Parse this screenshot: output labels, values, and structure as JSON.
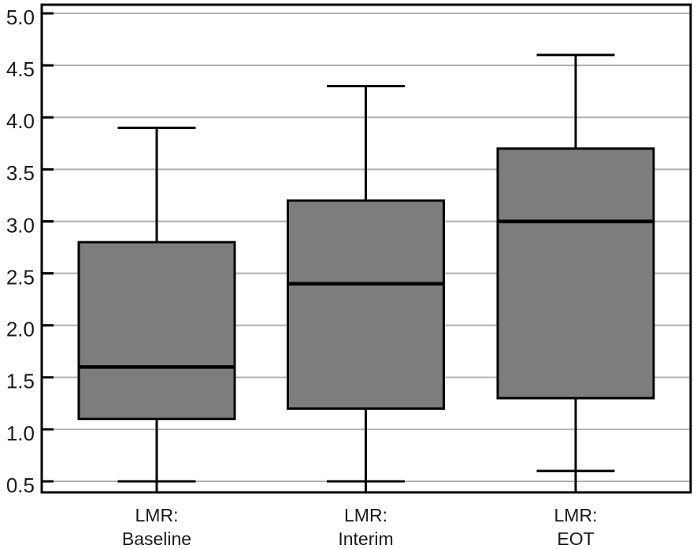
{
  "figure": {
    "background": "#ffffff",
    "title": ""
  },
  "chart_data": {
    "type": "boxplot",
    "title": "",
    "xlabel": "",
    "ylabel": "",
    "ylim": [
      0.5,
      5.0
    ],
    "ytick_interval": 0.5,
    "ytick_labels": [
      "5.0",
      "4.5",
      "4.0",
      "3.5",
      "3.0",
      "2.5",
      "2.0",
      "1.5",
      "1.0",
      "0.5"
    ],
    "grid": "horizontal",
    "legend": "none",
    "categories": [
      "LMR: Baseline",
      "LMR: Interim",
      "LMR: EOT"
    ],
    "category_label_lines": [
      [
        "LMR:",
        "Baseline"
      ],
      [
        "LMR:",
        "Interim"
      ],
      [
        "LMR:",
        "EOT"
      ]
    ],
    "series": [
      {
        "name": "LMR: Baseline",
        "whisker_low": 0.5,
        "q1": 1.1,
        "median": 1.6,
        "q3": 2.8,
        "whisker_high": 3.9
      },
      {
        "name": "LMR: Interim",
        "whisker_low": 0.5,
        "q1": 1.2,
        "median": 2.4,
        "q3": 3.2,
        "whisker_high": 4.3
      },
      {
        "name": "LMR: EOT",
        "whisker_low": 0.6,
        "q1": 1.3,
        "median": 3.0,
        "q3": 3.7,
        "whisker_high": 4.6
      }
    ],
    "style_notes": {
      "lower_whisker_line_extends_to_plot_floor": true,
      "cap_width_ratio_of_box": 0.5
    },
    "colors": {
      "box_fill": "#7d7d7d",
      "box_border": "#000000",
      "median": "#000000",
      "whisker": "#000000",
      "grid": "#b0b0b0",
      "frame": "#000000",
      "text": "#1a1a1a",
      "background": "#ffffff"
    }
  }
}
